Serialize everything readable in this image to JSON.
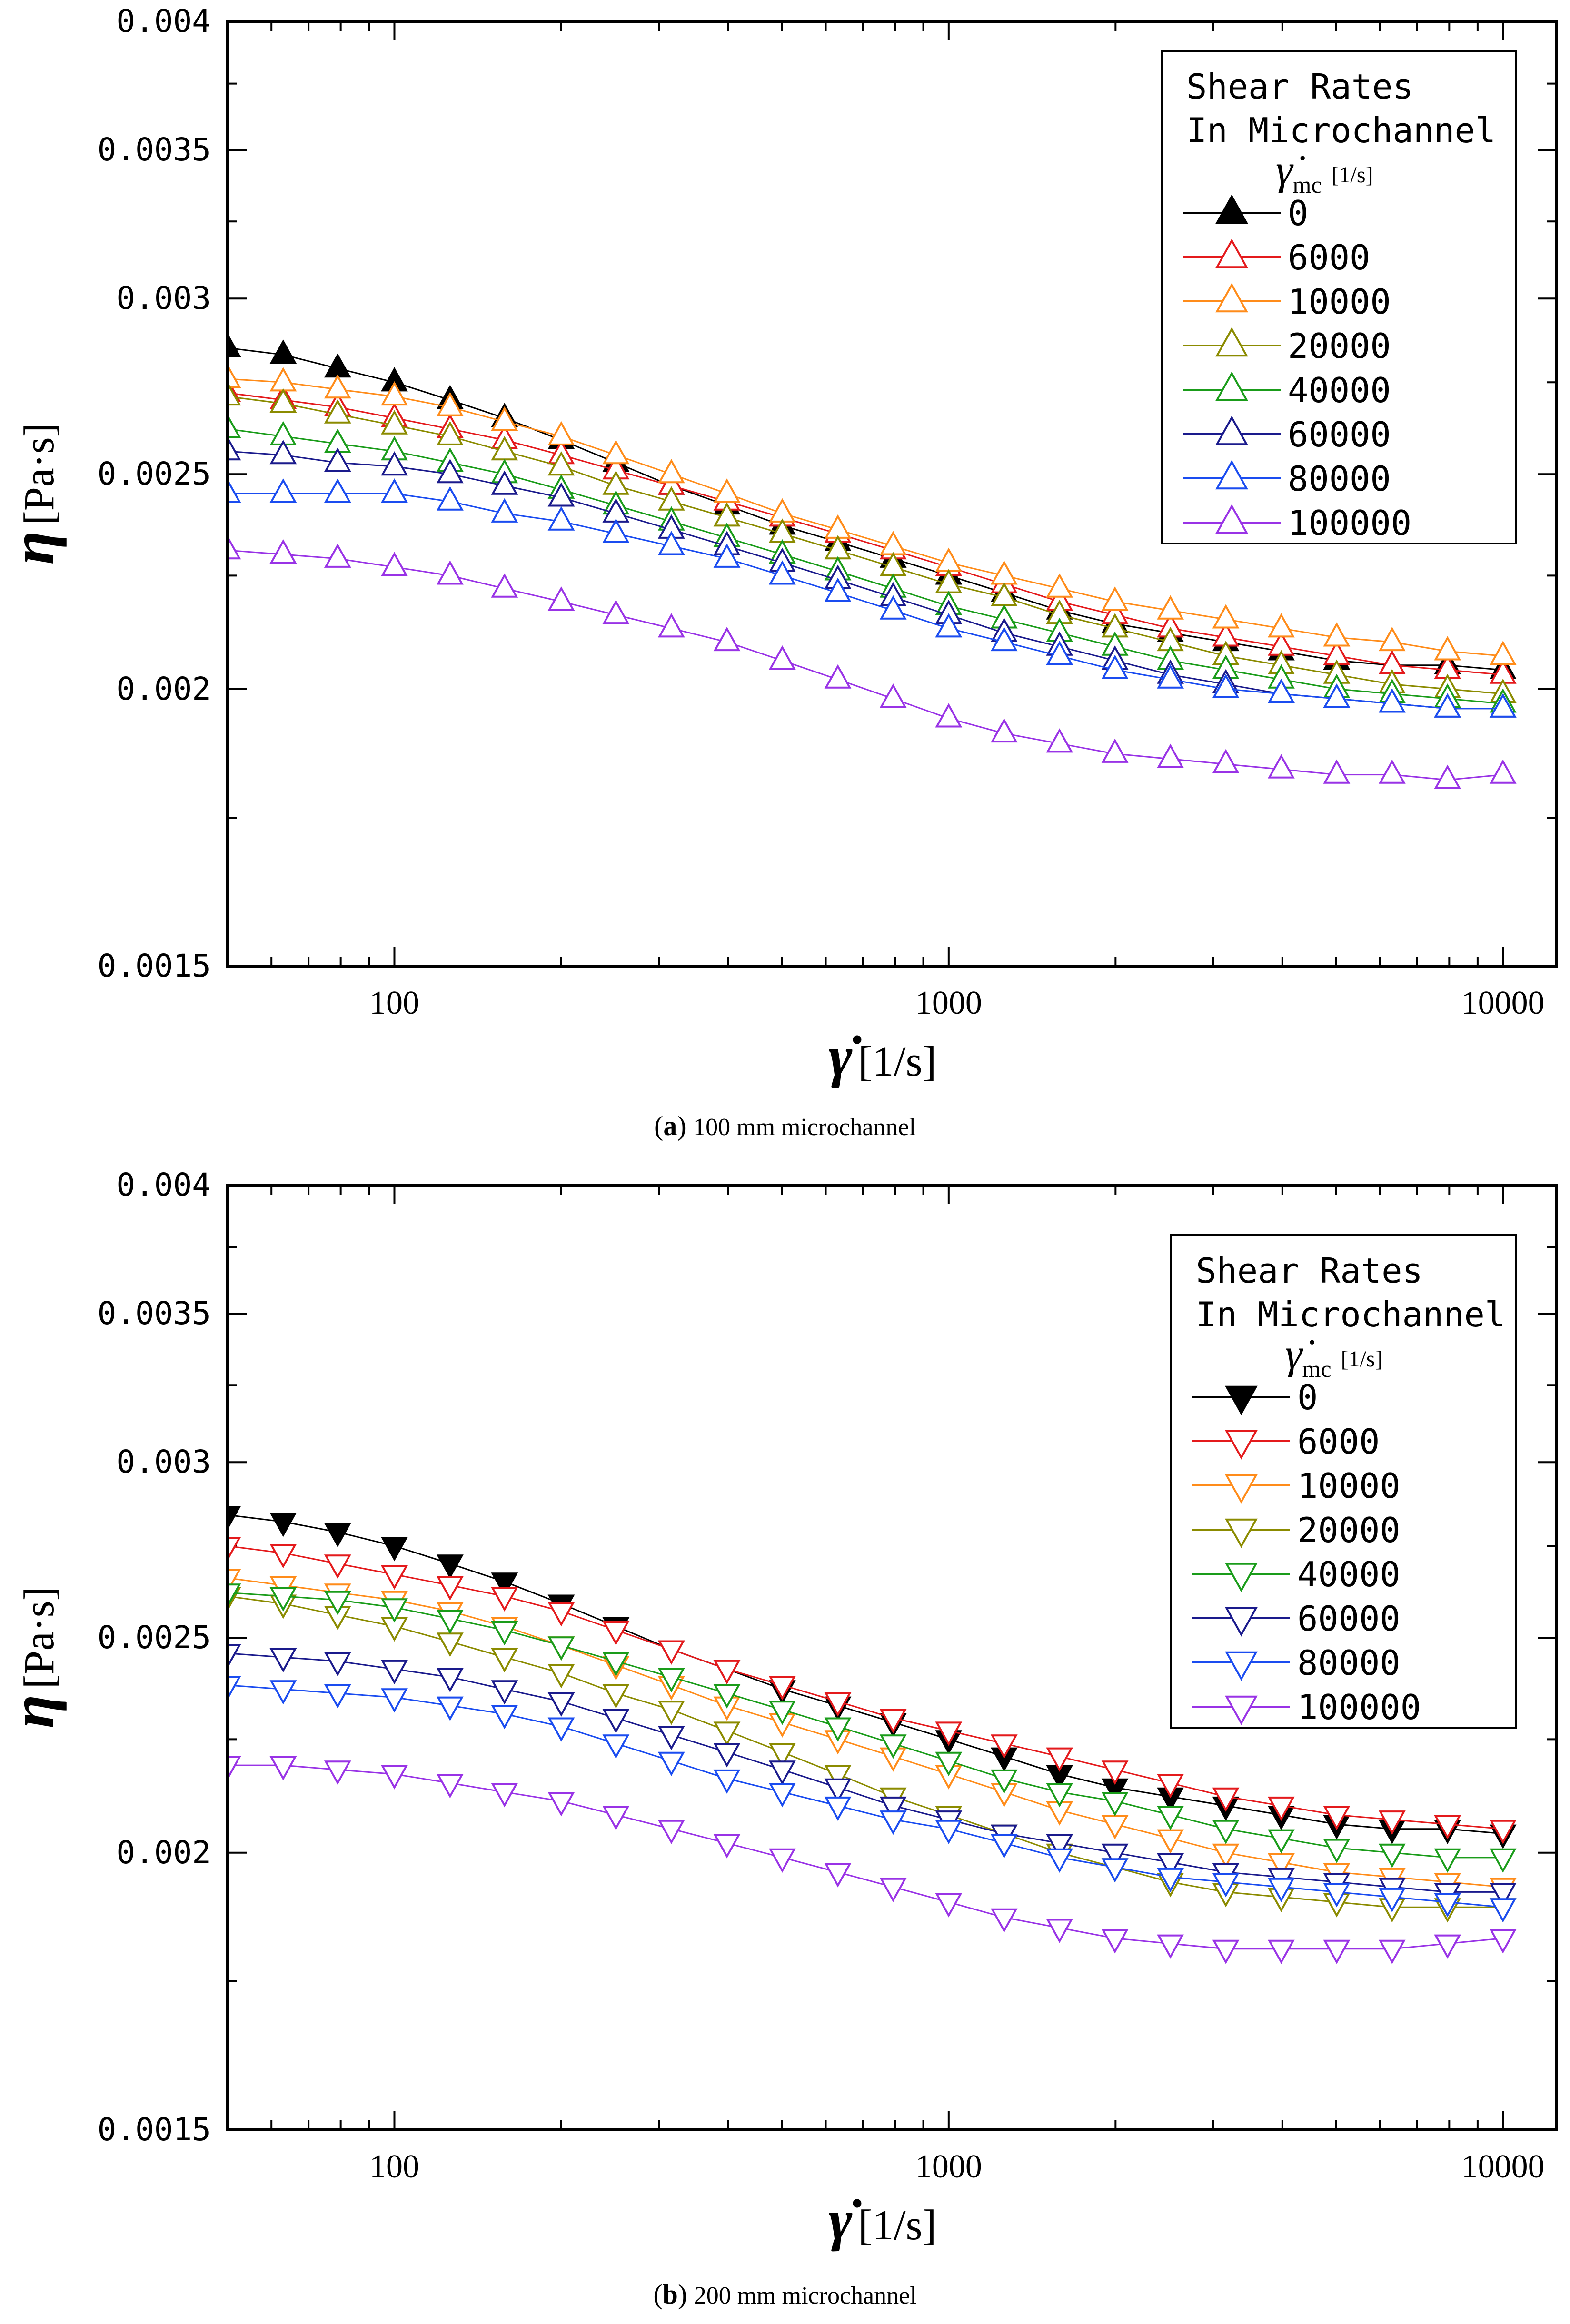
{
  "figure": {
    "x_ticks": [
      100,
      1000,
      10000
    ],
    "x_tick_labels": [
      "100",
      "1000",
      "10000"
    ],
    "y_ticks": [
      0.0015,
      0.002,
      0.0025,
      0.003,
      0.0035,
      0.004
    ],
    "y_tick_labels": [
      "0.0015",
      "0.002",
      "0.0025",
      "0.003",
      "0.0035",
      "0.004"
    ],
    "x_label_sym": "γ̇",
    "x_label_unit": "[1/s]",
    "y_label_sym": "η",
    "y_label_unit": "[Pa·s]",
    "legend_title_1": "Shear Rates",
    "legend_title_2": "In Microchannel",
    "legend_sym": "γ̇",
    "legend_sub": "mc",
    "legend_unit": "[1/s]"
  },
  "chart_data": [
    {
      "type": "line",
      "caption_label": "a",
      "caption_text": "100 mm microchannel",
      "xscale": "log",
      "yscale": "log",
      "xlim": [
        50,
        12500
      ],
      "ylim": [
        0.0015,
        0.004
      ],
      "marker": "triangle-up",
      "legend_position": "top-right",
      "x": [
        50,
        63,
        79,
        100,
        126,
        158,
        200,
        251,
        316,
        398,
        501,
        631,
        794,
        1000,
        1259,
        1585,
        1995,
        2512,
        3162,
        3981,
        5012,
        6310,
        7943,
        10000
      ],
      "series": [
        {
          "name": "0",
          "color": "#000000",
          "filled": true,
          "values": [
            0.00285,
            0.00283,
            0.00279,
            0.00275,
            0.0027,
            0.00265,
            0.00259,
            0.00253,
            0.00247,
            0.00242,
            0.00237,
            0.00233,
            0.00229,
            0.00225,
            0.00221,
            0.00217,
            0.00214,
            0.00212,
            0.0021,
            0.00208,
            0.00206,
            0.00205,
            0.00205,
            0.00204
          ]
        },
        {
          "name": "6000",
          "color": "#e41a1c",
          "filled": false,
          "values": [
            0.00272,
            0.0027,
            0.00268,
            0.00265,
            0.00262,
            0.00259,
            0.00255,
            0.00251,
            0.00247,
            0.00243,
            0.00239,
            0.00235,
            0.00231,
            0.00227,
            0.00223,
            0.00219,
            0.00216,
            0.00213,
            0.00211,
            0.00209,
            0.00207,
            0.00205,
            0.00204,
            0.00203
          ]
        },
        {
          "name": "10000",
          "color": "#ff8c1a",
          "filled": false,
          "values": [
            0.00276,
            0.00275,
            0.00273,
            0.00271,
            0.00268,
            0.00264,
            0.0026,
            0.00255,
            0.0025,
            0.00245,
            0.0024,
            0.00236,
            0.00232,
            0.00228,
            0.00225,
            0.00222,
            0.00219,
            0.00217,
            0.00215,
            0.00213,
            0.00211,
            0.0021,
            0.00208,
            0.00207
          ]
        },
        {
          "name": "20000",
          "color": "#8b8b00",
          "filled": false,
          "values": [
            0.00271,
            0.00269,
            0.00266,
            0.00263,
            0.0026,
            0.00256,
            0.00252,
            0.00247,
            0.00243,
            0.00239,
            0.00235,
            0.00231,
            0.00227,
            0.00223,
            0.0022,
            0.00216,
            0.00213,
            0.0021,
            0.00207,
            0.00205,
            0.00203,
            0.00201,
            0.002,
            0.00199
          ]
        },
        {
          "name": "40000",
          "color": "#1a9c1a",
          "filled": false,
          "values": [
            0.00262,
            0.0026,
            0.00258,
            0.00256,
            0.00253,
            0.0025,
            0.00246,
            0.00242,
            0.00238,
            0.00234,
            0.0023,
            0.00226,
            0.00222,
            0.00218,
            0.00215,
            0.00212,
            0.00209,
            0.00206,
            0.00204,
            0.00202,
            0.002,
            0.00199,
            0.00198,
            0.00197
          ]
        },
        {
          "name": "60000",
          "color": "#1a1a8c",
          "filled": false,
          "values": [
            0.00256,
            0.00255,
            0.00253,
            0.00252,
            0.0025,
            0.00247,
            0.00244,
            0.0024,
            0.00236,
            0.00232,
            0.00228,
            0.00224,
            0.0022,
            0.00216,
            0.00212,
            0.00209,
            0.00206,
            0.00203,
            0.00201,
            0.00199,
            0.00198,
            0.00197,
            0.00196,
            0.00196
          ]
        },
        {
          "name": "80000",
          "color": "#1a4cf0",
          "filled": false,
          "values": [
            0.00245,
            0.00245,
            0.00245,
            0.00245,
            0.00243,
            0.0024,
            0.00238,
            0.00235,
            0.00232,
            0.00229,
            0.00225,
            0.00221,
            0.00217,
            0.00213,
            0.0021,
            0.00207,
            0.00204,
            0.00202,
            0.002,
            0.00199,
            0.00198,
            0.00197,
            0.00196,
            0.00196
          ]
        },
        {
          "name": "100000",
          "color": "#9933e6",
          "filled": false,
          "values": [
            0.00231,
            0.0023,
            0.00229,
            0.00227,
            0.00225,
            0.00222,
            0.00219,
            0.00216,
            0.00213,
            0.0021,
            0.00206,
            0.00202,
            0.00198,
            0.00194,
            0.00191,
            0.00189,
            0.00187,
            0.00186,
            0.00185,
            0.00184,
            0.00183,
            0.00183,
            0.00182,
            0.00183
          ]
        }
      ]
    },
    {
      "type": "line",
      "caption_label": "b",
      "caption_text": "200 mm microchannel",
      "xscale": "log",
      "yscale": "log",
      "xlim": [
        50,
        12500
      ],
      "ylim": [
        0.0015,
        0.004
      ],
      "marker": "triangle-down",
      "legend_position": "top-right",
      "x": [
        50,
        63,
        79,
        100,
        126,
        158,
        200,
        251,
        316,
        398,
        501,
        631,
        794,
        1000,
        1259,
        1585,
        1995,
        2512,
        3162,
        3981,
        5012,
        6310,
        7943,
        10000
      ],
      "series": [
        {
          "name": "0",
          "color": "#000000",
          "filled": true,
          "values": [
            0.00284,
            0.00282,
            0.00279,
            0.00275,
            0.0027,
            0.00265,
            0.00259,
            0.00253,
            0.00247,
            0.00242,
            0.00237,
            0.00233,
            0.00229,
            0.00225,
            0.00221,
            0.00217,
            0.00214,
            0.00212,
            0.0021,
            0.00208,
            0.00206,
            0.00205,
            0.00205,
            0.00204
          ]
        },
        {
          "name": "6000",
          "color": "#e41a1c",
          "filled": false,
          "values": [
            0.00275,
            0.00273,
            0.0027,
            0.00267,
            0.00264,
            0.00261,
            0.00257,
            0.00252,
            0.00247,
            0.00242,
            0.00238,
            0.00234,
            0.0023,
            0.00227,
            0.00224,
            0.00221,
            0.00218,
            0.00215,
            0.00212,
            0.0021,
            0.00208,
            0.00207,
            0.00206,
            0.00205
          ]
        },
        {
          "name": "10000",
          "color": "#ff8c1a",
          "filled": false,
          "values": [
            0.00266,
            0.00264,
            0.00262,
            0.0026,
            0.00257,
            0.00253,
            0.00248,
            0.00243,
            0.00238,
            0.00233,
            0.00229,
            0.00225,
            0.00221,
            0.00217,
            0.00213,
            0.00209,
            0.00206,
            0.00203,
            0.002,
            0.00198,
            0.00196,
            0.00195,
            0.00194,
            0.00193
          ]
        },
        {
          "name": "20000",
          "color": "#8b8b00",
          "filled": false,
          "values": [
            0.00261,
            0.00259,
            0.00256,
            0.00253,
            0.00249,
            0.00245,
            0.00241,
            0.00236,
            0.00232,
            0.00227,
            0.00222,
            0.00217,
            0.00212,
            0.00208,
            0.00204,
            0.002,
            0.00197,
            0.00194,
            0.00192,
            0.00191,
            0.0019,
            0.00189,
            0.00189,
            0.00189
          ]
        },
        {
          "name": "40000",
          "color": "#1a9c1a",
          "filled": false,
          "values": [
            0.00262,
            0.00261,
            0.0026,
            0.00258,
            0.00255,
            0.00252,
            0.00248,
            0.00244,
            0.0024,
            0.00236,
            0.00232,
            0.00228,
            0.00224,
            0.0022,
            0.00216,
            0.00213,
            0.00211,
            0.00208,
            0.00205,
            0.00203,
            0.00201,
            0.002,
            0.00199,
            0.00199
          ]
        },
        {
          "name": "60000",
          "color": "#1a1a8c",
          "filled": false,
          "values": [
            0.00246,
            0.00245,
            0.00244,
            0.00242,
            0.0024,
            0.00237,
            0.00234,
            0.0023,
            0.00226,
            0.00222,
            0.00218,
            0.00214,
            0.0021,
            0.00207,
            0.00204,
            0.00202,
            0.002,
            0.00198,
            0.00196,
            0.00195,
            0.00194,
            0.00193,
            0.00192,
            0.00192
          ]
        },
        {
          "name": "80000",
          "color": "#1a4cf0",
          "filled": false,
          "values": [
            0.00238,
            0.00237,
            0.00236,
            0.00235,
            0.00233,
            0.00231,
            0.00228,
            0.00224,
            0.0022,
            0.00216,
            0.00213,
            0.0021,
            0.00207,
            0.00205,
            0.00202,
            0.00199,
            0.00197,
            0.00195,
            0.00194,
            0.00193,
            0.00192,
            0.00191,
            0.0019,
            0.00189
          ]
        },
        {
          "name": "100000",
          "color": "#9933e6",
          "filled": false,
          "values": [
            0.00219,
            0.00219,
            0.00218,
            0.00217,
            0.00215,
            0.00213,
            0.00211,
            0.00208,
            0.00205,
            0.00202,
            0.00199,
            0.00196,
            0.00193,
            0.0019,
            0.00187,
            0.00185,
            0.00183,
            0.00182,
            0.00181,
            0.00181,
            0.00181,
            0.00181,
            0.00182,
            0.00183
          ]
        }
      ]
    }
  ]
}
